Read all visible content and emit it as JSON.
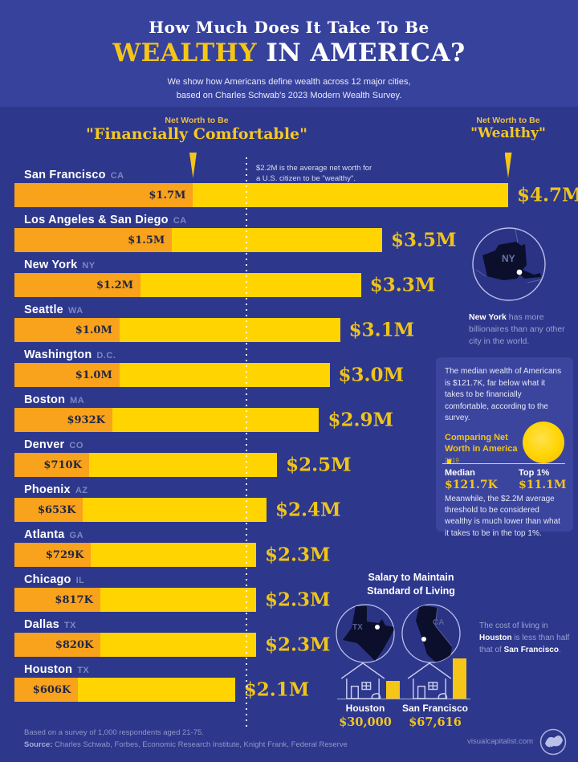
{
  "header": {
    "title_line1": "How Much Does It Take To Be",
    "title_gold": "WEALTHY",
    "title_rest": " IN AMERICA?",
    "subtitle_line1": "We show how Americans define wealth across 12 major cities,",
    "subtitle_line2": "based on Charles Schwab's 2023 Modern Wealth Survey."
  },
  "legend": {
    "comfortable_pre": "Net Worth to Be",
    "comfortable_label": "\"Financially Comfortable\"",
    "wealthy_pre": "Net Worth to Be",
    "wealthy_label": "\"Wealthy\""
  },
  "annotation": {
    "line1": "$2.2M is the average net worth for",
    "line2": "a U.S. citizen to be \"wealthy\"."
  },
  "chart_data": [
    {
      "type": "bar",
      "title": "How Much Does It Take To Be Wealthy In America?",
      "subtitle": "Net worth thresholds across 12 major U.S. cities, Charles Schwab 2023 Modern Wealth Survey",
      "unit": "USD (millions)",
      "xlim": [
        0,
        4.7
      ],
      "reference_line_musd": 2.2,
      "series_labels": [
        "Net Worth to Be \"Financially Comfortable\"",
        "Net Worth to Be \"Wealthy\""
      ],
      "rows": [
        {
          "city": "San Francisco",
          "state": "CA",
          "comfortable_label": "$1.7M",
          "comfortable_musd": 1.7,
          "wealthy_label": "$4.7M",
          "wealthy_musd": 4.7
        },
        {
          "city": "Los Angeles & San Diego",
          "state": "CA",
          "comfortable_label": "$1.5M",
          "comfortable_musd": 1.5,
          "wealthy_label": "$3.5M",
          "wealthy_musd": 3.5
        },
        {
          "city": "New York",
          "state": "NY",
          "comfortable_label": "$1.2M",
          "comfortable_musd": 1.2,
          "wealthy_label": "$3.3M",
          "wealthy_musd": 3.3
        },
        {
          "city": "Seattle",
          "state": "WA",
          "comfortable_label": "$1.0M",
          "comfortable_musd": 1.0,
          "wealthy_label": "$3.1M",
          "wealthy_musd": 3.1
        },
        {
          "city": "Washington",
          "state": "D.C.",
          "comfortable_label": "$1.0M",
          "comfortable_musd": 1.0,
          "wealthy_label": "$3.0M",
          "wealthy_musd": 3.0
        },
        {
          "city": "Boston",
          "state": "MA",
          "comfortable_label": "$932K",
          "comfortable_musd": 0.932,
          "wealthy_label": "$2.9M",
          "wealthy_musd": 2.9
        },
        {
          "city": "Denver",
          "state": "CO",
          "comfortable_label": "$710K",
          "comfortable_musd": 0.71,
          "wealthy_label": "$2.5M",
          "wealthy_musd": 2.5
        },
        {
          "city": "Phoenix",
          "state": "AZ",
          "comfortable_label": "$653K",
          "comfortable_musd": 0.653,
          "wealthy_label": "$2.4M",
          "wealthy_musd": 2.4
        },
        {
          "city": "Atlanta",
          "state": "GA",
          "comfortable_label": "$729K",
          "comfortable_musd": 0.729,
          "wealthy_label": "$2.3M",
          "wealthy_musd": 2.3
        },
        {
          "city": "Chicago",
          "state": "IL",
          "comfortable_label": "$817K",
          "comfortable_musd": 0.817,
          "wealthy_label": "$2.3M",
          "wealthy_musd": 2.3
        },
        {
          "city": "Dallas",
          "state": "TX",
          "comfortable_label": "$820K",
          "comfortable_musd": 0.82,
          "wealthy_label": "$2.3M",
          "wealthy_musd": 2.3
        },
        {
          "city": "Houston",
          "state": "TX",
          "comfortable_label": "$606K",
          "comfortable_musd": 0.606,
          "wealthy_label": "$2.1M",
          "wealthy_musd": 2.1
        }
      ]
    },
    {
      "type": "bar",
      "title": "Salary to Maintain Standard of Living",
      "categories": [
        "Houston",
        "San Francisco"
      ],
      "values": [
        30000,
        67616
      ],
      "value_labels": [
        "$30,000",
        "$67,616"
      ]
    },
    {
      "type": "bar",
      "title": "Comparing Net Worth in America 2019",
      "categories": [
        "Median",
        "Top 1%"
      ],
      "values": [
        121700,
        11100000
      ],
      "value_labels": [
        "$121.7K",
        "$11.1M"
      ]
    }
  ],
  "ny_inset": {
    "abbr": "NY",
    "bold": "New York",
    "rest": " has more billionaires than any other city in the world."
  },
  "median_box": {
    "p1": "The median wealth of Americans is $121.7K, far below what it takes to be financially comfortable, according to the survey.",
    "comparing_label": "Comparing Net Worth in America",
    "comparing_year": "2019",
    "median_label": "Median",
    "median_value": "$121.7K",
    "top1_label": "Top 1%",
    "top1_value": "$11.1M",
    "p2": "Meanwhile, the $2.2M average threshold to be considered wealthy is much lower than what it takes to be in the top 1%."
  },
  "salary_inset": {
    "title_line1": "Salary to Maintain",
    "title_line2": "Standard of Living",
    "tx_abbr": "TX",
    "ca_abbr": "CA",
    "houston_label": "Houston",
    "houston_value": "$30,000",
    "sf_label": "San Francisco",
    "sf_value": "$67,616",
    "cost_pre": "The cost of living in ",
    "cost_bold1": "Houston",
    "cost_mid": " is less than half that of ",
    "cost_bold2": "San Francisco",
    "cost_end": "."
  },
  "footer": {
    "line1": "Based on a survey of 1,000 respondents aged 21-75.",
    "source_label": "Source:",
    "source_rest": " Charles Schwab, Forbes, Economic Research Institute, Knight Frank, Federal Reserve",
    "brand": "visualcapitalist.com"
  },
  "colors": {
    "header_bg": "#37429d",
    "main_bg": "#2d378c",
    "panel_bg": "#3b459d",
    "bar_wealthy": "#ffd400",
    "bar_comfortable": "#f9a21b",
    "gold_text": "#eec41c",
    "accent_gold": "#f5c518"
  }
}
